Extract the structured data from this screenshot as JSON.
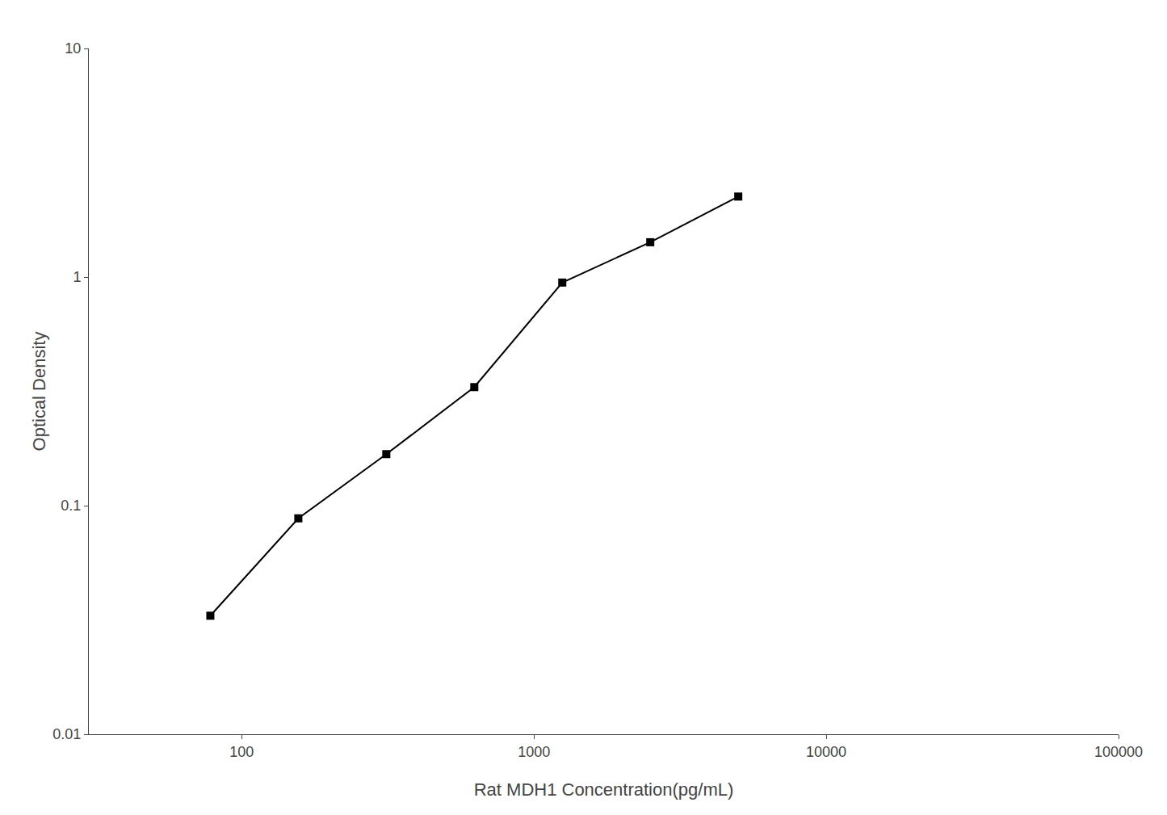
{
  "chart_data": {
    "type": "line",
    "x": [
      78.13,
      156.25,
      312.5,
      625,
      1250,
      2500,
      5000
    ],
    "values": [
      0.033,
      0.088,
      0.168,
      0.33,
      0.946,
      1.42,
      2.25
    ],
    "xlabel": "Rat MDH1 Concentration(pg/mL)",
    "ylabel": "Optical Density",
    "xlim": [
      30,
      100000
    ],
    "ylim": [
      0.01,
      10
    ],
    "xticks": [
      100,
      1000,
      10000,
      100000
    ],
    "yticks": [
      0.01,
      0.1,
      1,
      10
    ],
    "log": true,
    "grid": false,
    "color": "#000000",
    "marker": "square",
    "line_style": "solid"
  }
}
